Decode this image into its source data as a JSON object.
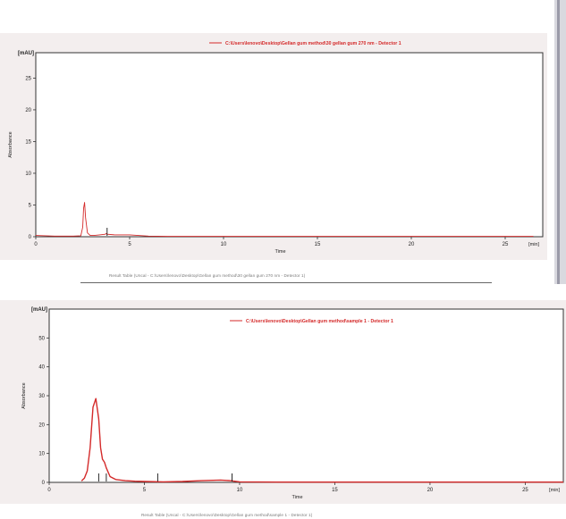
{
  "chart_data": [
    {
      "type": "line",
      "unit_label": "[mAU]",
      "ylabel": "Absorbance",
      "xlabel": "Time",
      "xunit_label": "[min]",
      "xlim": [
        0,
        27
      ],
      "ylim": [
        0,
        29
      ],
      "x_ticks": [
        0,
        5,
        10,
        15,
        20,
        25
      ],
      "y_ticks": [
        0,
        5,
        10,
        15,
        20,
        25
      ],
      "legend": {
        "label": "C:\\Users\\lenovo\\Desktop\\Gellan gum method\\30 gellan gum 270 nm - Detector 1",
        "position": "top-right",
        "color": "#d42a2a"
      },
      "series": [
        {
          "color": "#d42a2a",
          "x": [
            0,
            0.5,
            1,
            1.5,
            2,
            2.4,
            2.5,
            2.55,
            2.6,
            2.65,
            2.75,
            2.9,
            3.1,
            3.4,
            3.7,
            3.75,
            3.8,
            4.2,
            5,
            6,
            7,
            8,
            10,
            15,
            20,
            25,
            26.5
          ],
          "y": [
            0.2,
            0.15,
            0.1,
            0.1,
            0.1,
            0.15,
            1.5,
            4.5,
            5.4,
            3.0,
            0.6,
            0.2,
            0.2,
            0.3,
            0.4,
            0.5,
            0.4,
            0.3,
            0.3,
            0.1,
            0.05,
            0.05,
            0.05,
            0.05,
            0.05,
            0.05,
            0.05
          ]
        }
      ],
      "markers_x": [
        3.8
      ]
    },
    {
      "type": "line",
      "unit_label": "[mAU]",
      "ylabel": "Absorbance",
      "xlabel": "Time",
      "xunit_label": "[min]",
      "xlim": [
        0,
        27
      ],
      "ylim": [
        0,
        60
      ],
      "x_ticks": [
        0,
        5,
        10,
        15,
        20,
        25
      ],
      "y_ticks": [
        0,
        10,
        20,
        30,
        40,
        50
      ],
      "legend": {
        "label": "C:\\Users\\lenovo\\Desktop\\Gellan gum method\\sample 1 - Detector 1",
        "position": "top-right",
        "color": "#d42a2a"
      },
      "series": [
        {
          "color": "#d42a2a",
          "x": [
            1.7,
            1.85,
            2.0,
            2.15,
            2.3,
            2.45,
            2.6,
            2.7,
            2.8,
            2.9,
            3.0,
            3.2,
            3.5,
            4,
            4.5,
            5,
            6,
            7,
            8,
            9,
            9.5,
            10,
            12,
            15,
            20,
            25,
            27
          ],
          "y": [
            0.5,
            1.5,
            4,
            12,
            26,
            29,
            22,
            12,
            8,
            7,
            5,
            2,
            1,
            0.6,
            0.4,
            0.3,
            0.2,
            0.3,
            0.6,
            0.8,
            0.6,
            0.2,
            0.1,
            0.1,
            0.1,
            0.1,
            0.1
          ]
        }
      ],
      "markers_x": [
        2.6,
        3.0,
        5.7,
        9.6
      ]
    }
  ],
  "footer_top": "Result Table (Uncal - C:\\Users\\lenovo\\Desktop\\Gellan gum method\\30 gellan gum 270 nm - Detector 1)",
  "footer_bottom": "Result Table (Uncal - C:\\Users\\lenovo\\Desktop\\Gellan gum method\\sample 1 - Detector 1)"
}
